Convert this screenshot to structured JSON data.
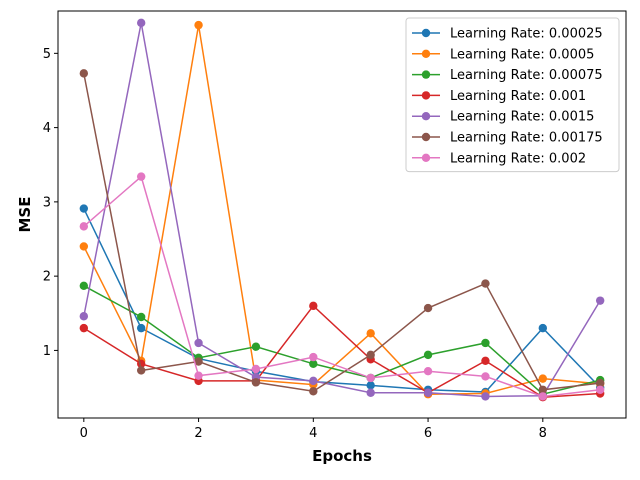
{
  "chart_data": {
    "type": "line",
    "title": "",
    "xlabel": "Epochs",
    "ylabel": "MSE",
    "xlim": [
      -0.45,
      9.45
    ],
    "ylim": [
      0.09,
      5.57
    ],
    "xticks": [
      0,
      2,
      4,
      6,
      8
    ],
    "yticks": [
      1,
      2,
      3,
      4,
      5
    ],
    "grid": false,
    "legend_position": "top-right",
    "x": [
      0,
      1,
      2,
      3,
      4,
      5,
      6,
      7,
      8,
      9
    ],
    "series": [
      {
        "name": "Learning Rate: 0.00025",
        "color": "#1f77b4",
        "values": [
          2.91,
          1.3,
          0.89,
          0.72,
          0.58,
          0.53,
          0.47,
          0.44,
          1.3,
          0.5
        ]
      },
      {
        "name": "Learning Rate: 0.0005",
        "color": "#ff7f0e",
        "values": [
          2.4,
          0.86,
          5.38,
          0.6,
          0.54,
          1.23,
          0.41,
          0.42,
          0.62,
          0.55
        ]
      },
      {
        "name": "Learning Rate: 0.00075",
        "color": "#2ca02c",
        "values": [
          1.87,
          1.45,
          0.9,
          1.05,
          0.82,
          0.63,
          0.94,
          1.1,
          0.41,
          0.6
        ]
      },
      {
        "name": "Learning Rate: 0.001",
        "color": "#d62728",
        "values": [
          1.3,
          0.82,
          0.59,
          0.59,
          1.6,
          0.88,
          0.43,
          0.86,
          0.37,
          0.42
        ]
      },
      {
        "name": "Learning Rate: 0.0015",
        "color": "#9467bd",
        "values": [
          1.46,
          5.41,
          1.1,
          0.64,
          0.59,
          0.43,
          0.43,
          0.38,
          0.39,
          1.67
        ]
      },
      {
        "name": "Learning Rate: 0.00175",
        "color": "#8c564b",
        "values": [
          4.73,
          0.73,
          0.85,
          0.57,
          0.45,
          0.94,
          1.57,
          1.9,
          0.47,
          0.56
        ]
      },
      {
        "name": "Learning Rate: 0.002",
        "color": "#e377c2",
        "values": [
          2.67,
          3.34,
          0.66,
          0.75,
          0.91,
          0.63,
          0.72,
          0.65,
          0.38,
          0.47
        ]
      }
    ]
  }
}
